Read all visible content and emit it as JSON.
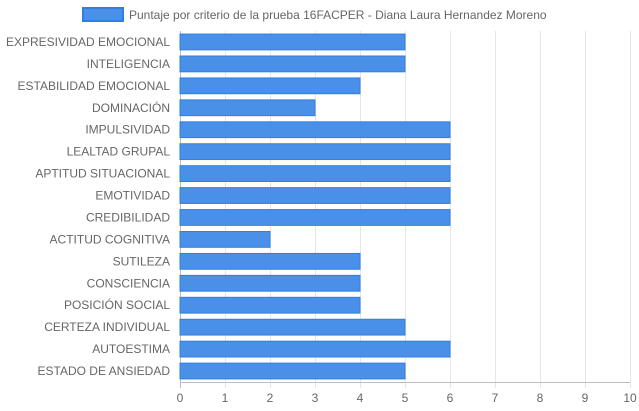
{
  "chart_data": {
    "type": "bar",
    "orientation": "horizontal",
    "legend": {
      "position": "top",
      "entries": [
        "Puntaje por criterio de la prueba 16FACPER - Diana Laura Hernandez Moreno"
      ]
    },
    "categories": [
      "EXPRESIVIDAD EMOCIONAL",
      "INTELIGENCIA",
      "ESTABILIDAD EMOCIONAL",
      "DOMINACIÓN",
      "IMPULSIVIDAD",
      "LEALTAD GRUPAL",
      "APTITUD SITUACIONAL",
      "EMOTIVIDAD",
      "CREDIBILIDAD",
      "ACTITUD COGNITIVA",
      "SUTILEZA",
      "CONSCIENCIA",
      "POSICIÓN SOCIAL",
      "CERTEZA INDIVIDUAL",
      "AUTOESTIMA",
      "ESTADO DE ANSIEDAD"
    ],
    "series": [
      {
        "name": "Puntaje por criterio de la prueba 16FACPER - Diana Laura Hernandez Moreno",
        "values": [
          5,
          5,
          4,
          3,
          6,
          6,
          6,
          6,
          6,
          2,
          4,
          4,
          4,
          5,
          6,
          5
        ]
      }
    ],
    "xlim": [
      0,
      10
    ],
    "xticks": [
      "0",
      "1",
      "2",
      "3",
      "4",
      "5",
      "6",
      "7",
      "8",
      "9",
      "10"
    ],
    "grid": true,
    "colors": {
      "bar_fill": "#4a90e8",
      "bar_stroke": "#2f7fe0"
    }
  }
}
